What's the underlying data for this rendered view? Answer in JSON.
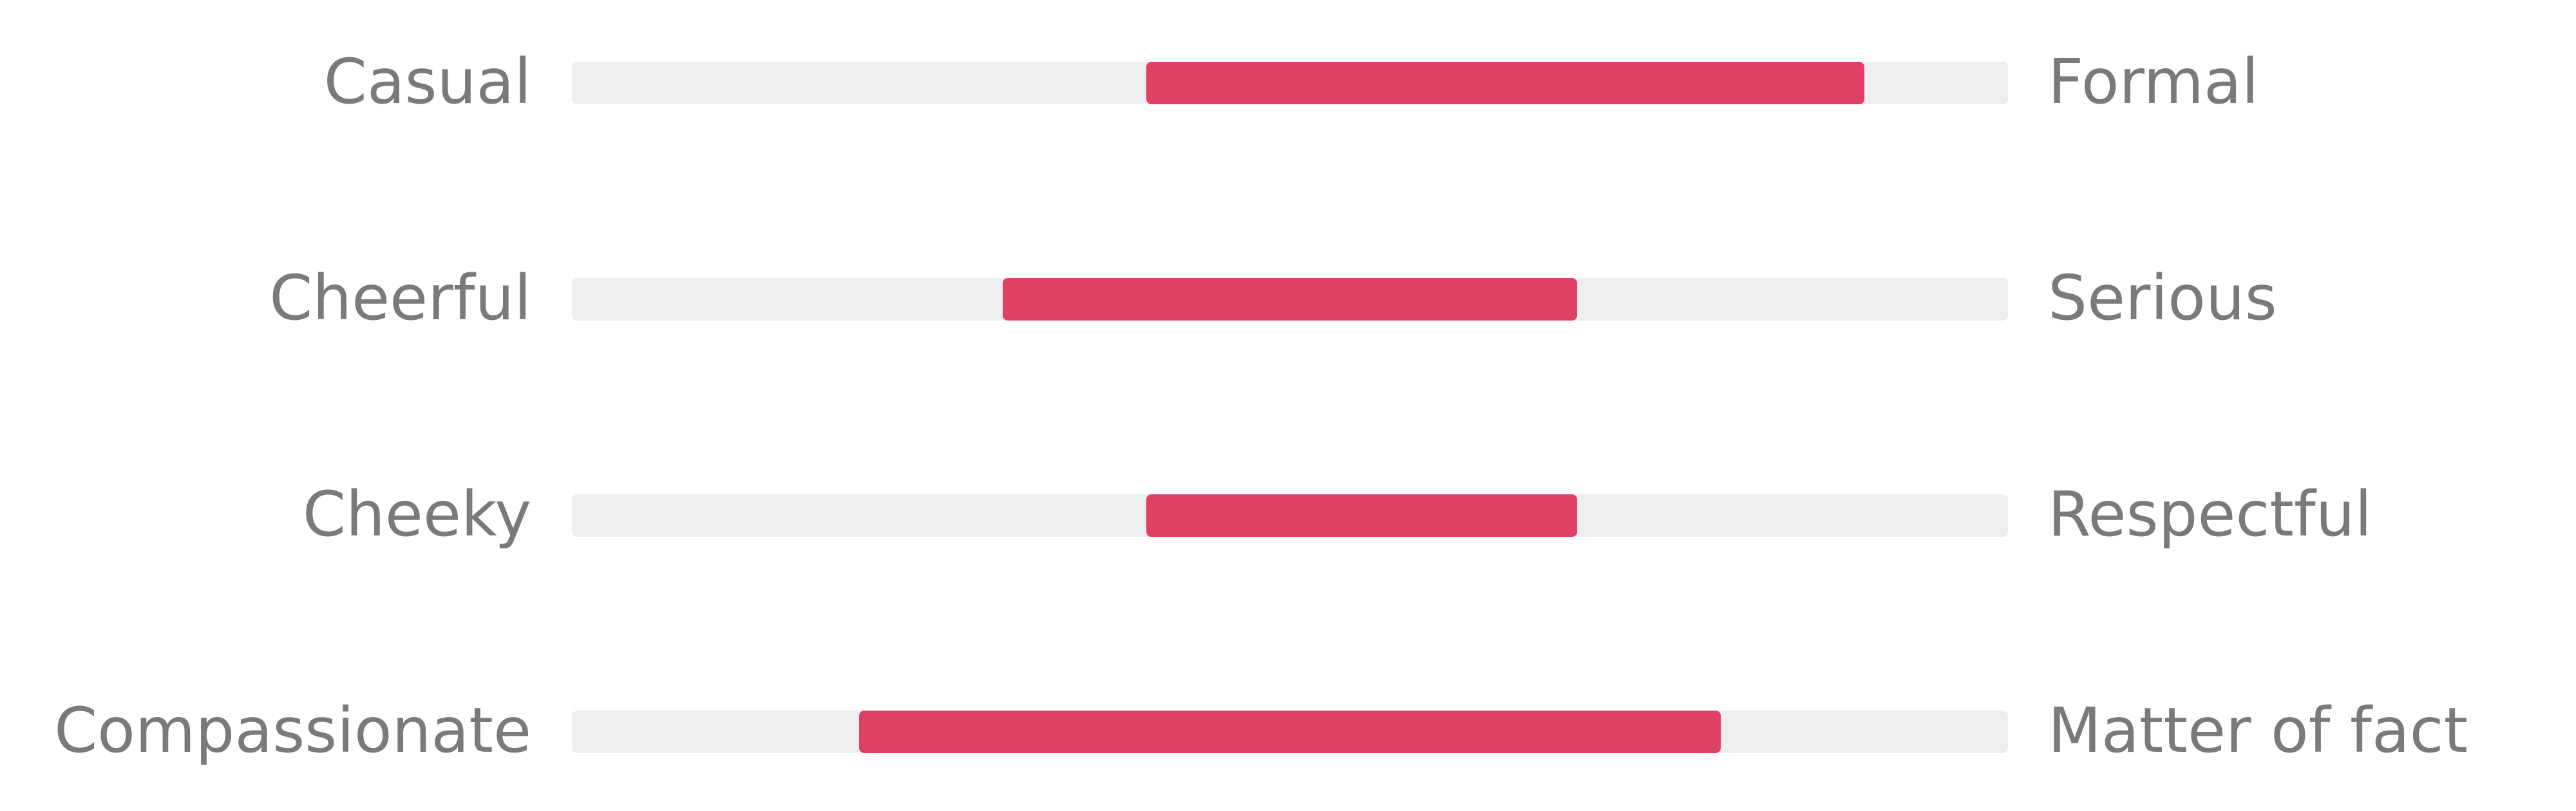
{
  "chart_data": {
    "type": "bar",
    "subtype": "range-slider",
    "title": "",
    "axis_range": [
      0,
      100
    ],
    "bar_color": "#e04062",
    "track_color": "#eeeeee",
    "label_color": "#7a7a7a",
    "rows": [
      {
        "left_label": "Casual",
        "right_label": "Formal",
        "range": [
          40,
          90
        ]
      },
      {
        "left_label": "Cheerful",
        "right_label": "Serious",
        "range": [
          30,
          70
        ]
      },
      {
        "left_label": "Cheeky",
        "right_label": "Respectful",
        "range": [
          40,
          70
        ]
      },
      {
        "left_label": "Compassionate",
        "right_label": "Matter of fact",
        "range": [
          20,
          80
        ]
      }
    ]
  }
}
